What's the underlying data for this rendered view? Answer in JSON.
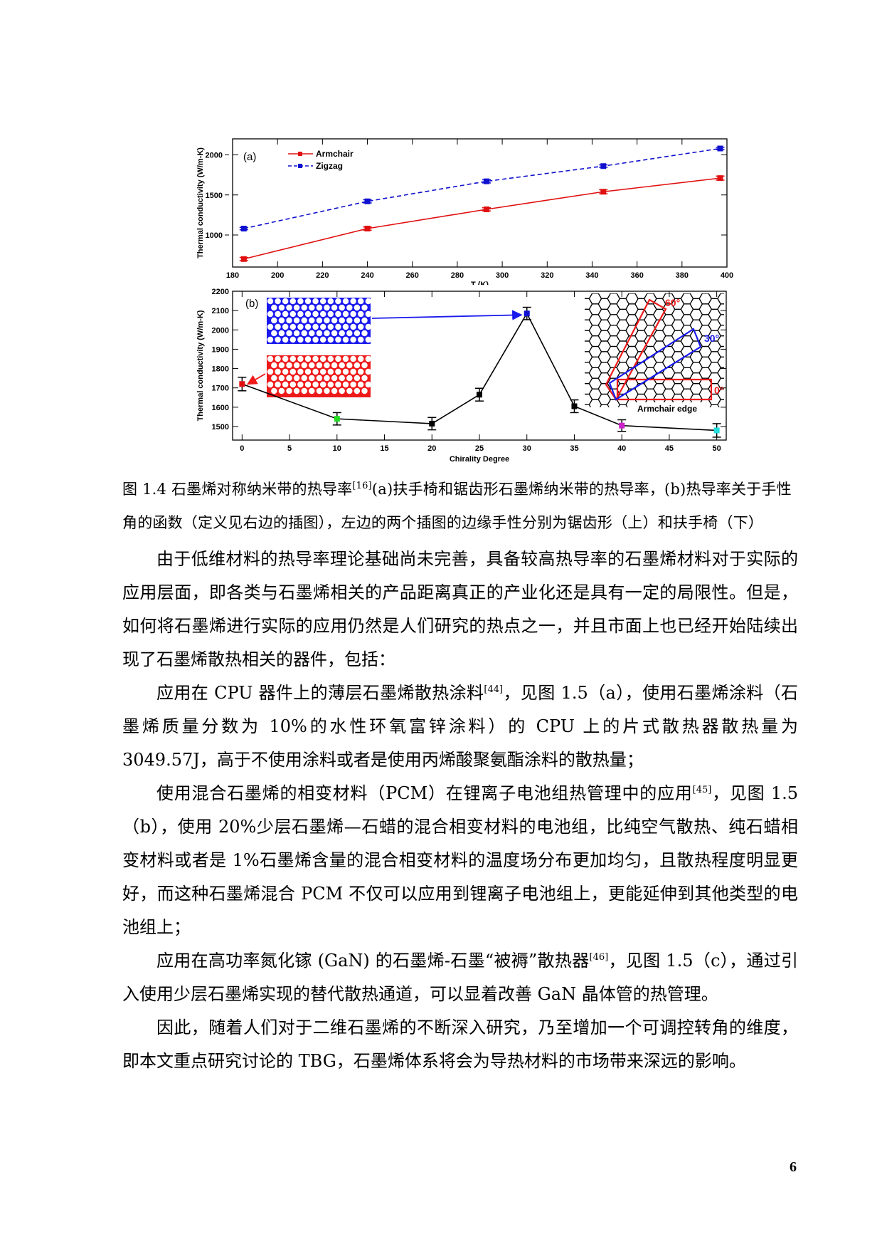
{
  "figure": {
    "panel_a": {
      "label": "(a)",
      "ylabel": "Thermal conductivity (W/m-K)",
      "xlabel": "T (K)",
      "legend": [
        "Armchair",
        "Zigzag"
      ]
    },
    "panel_b": {
      "label": "(b)",
      "ylabel": "Thermal conductivity (W/m-K)",
      "xlabel": "Chirality Degree",
      "inset_labels": [
        "60°",
        "30°",
        "0°"
      ],
      "inset_caption": "Armchair edge"
    }
  },
  "chart_data": [
    {
      "type": "line",
      "title": "(a)",
      "xlabel": "T (K)",
      "ylabel": "Thermal conductivity (W/m-K)",
      "x": [
        185,
        240,
        293,
        345,
        397
      ],
      "xlim": [
        180,
        400
      ],
      "ylim": [
        600,
        2200
      ],
      "xticks": [
        180,
        200,
        220,
        240,
        260,
        280,
        300,
        320,
        340,
        360,
        380,
        400
      ],
      "yticks": [
        1000,
        1500,
        2000
      ],
      "series": [
        {
          "name": "Armchair",
          "color": "#e01010",
          "style": "solid",
          "values": [
            700,
            1080,
            1320,
            1540,
            1710
          ],
          "error": [
            20,
            20,
            20,
            25,
            25
          ]
        },
        {
          "name": "Zigzag",
          "color": "#1010d0",
          "style": "dashed",
          "values": [
            1080,
            1420,
            1670,
            1860,
            2080
          ],
          "error": [
            15,
            20,
            20,
            15,
            15
          ]
        }
      ],
      "legend_position": "upper left",
      "grid": false
    },
    {
      "type": "line",
      "title": "(b)",
      "xlabel": "Chirality Degree",
      "ylabel": "Thermal conductivity (W/m-K)",
      "x": [
        0,
        10,
        20,
        25,
        30,
        35,
        40,
        50
      ],
      "xlim": [
        -1,
        51
      ],
      "ylim": [
        1430,
        2200
      ],
      "xticks": [
        0,
        5,
        10,
        15,
        20,
        25,
        30,
        35,
        40,
        45,
        50
      ],
      "yticks": [
        1500,
        1600,
        1700,
        1800,
        1900,
        2000,
        2100,
        2200
      ],
      "series": [
        {
          "name": "Thermal conductivity vs chirality",
          "color": "#000000",
          "values": [
            1720,
            1540,
            1515,
            1665,
            2085,
            1605,
            1505,
            1480
          ],
          "error": [
            35,
            32,
            32,
            33,
            32,
            33,
            30,
            35
          ],
          "marker_colors": [
            "#e01010",
            "#22dd22",
            "#000000",
            "#000000",
            "#1010d0",
            "#000000",
            "#cc22cc",
            "#22dddd"
          ]
        }
      ],
      "annotations": [
        "zigzag-edge inset (blue) → 30°",
        "armchair-edge inset (red) → 0°",
        "60°",
        "30°",
        "0°",
        "Armchair edge"
      ],
      "grid": false
    }
  ],
  "caption": {
    "line1_prefix": "图 1.4 石墨烯对称纳米带的热导率",
    "ref": "[16]",
    "line1_suffix": "(a)扶手椅和锯齿形石墨烯纳米带的热导率，(b)热导率关于手性",
    "line2": "角的函数（定义见右边的插图），左边的两个插图的边缘手性分别为锯齿形（上）和扶手椅（下）"
  },
  "paragraphs": [
    {
      "text": "由于低维材料的热导率理论基础尚未完善，具备较高热导率的石墨烯材料对于实际的应用层面，即各类与石墨烯相关的产品距离真正的产业化还是具有一定的局限性。但是，如何将石墨烯进行实际的应用仍然是人们研究的热点之一，并且市面上也已经开始陆续出现了石墨烯散热相关的器件，包括："
    },
    {
      "pre": "应用在 CPU 器件上的薄层石墨烯散热涂料",
      "ref": "[44]",
      "post": "，见图 1.5（a），使用石墨烯涂料（石墨烯质量分数为 10%的水性环氧富锌涂料）的 CPU 上的片式散热器散热量为 3049.57J，高于不使用涂料或者是使用丙烯酸聚氨酯涂料的散热量；"
    },
    {
      "pre": "使用混合石墨烯的相变材料（PCM）在锂离子电池组热管理中的应用",
      "ref": "[45]",
      "post": "，见图 1.5（b），使用 20%少层石墨烯—石蜡的混合相变材料的电池组，比纯空气散热、纯石蜡相变材料或者是 1%石墨烯含量的混合相变材料的温度场分布更加均匀，且散热程度明显更好，而这种石墨烯混合 PCM 不仅可以应用到锂离子电池组上，更能延伸到其他类型的电池组上；"
    },
    {
      "pre": "应用在高功率氮化镓 (GaN) 的石墨烯-石墨“被褥”散热器",
      "ref": "[46]",
      "post": "，见图 1.5（c），通过引入使用少层石墨烯实现的替代散热通道，可以显着改善 GaN 晶体管的热管理。"
    },
    {
      "text": "因此，随着人们对于二维石墨烯的不断深入研究，乃至增加一个可调控转角的维度，即本文重点研究讨论的 TBG，石墨烯体系将会为导热材料的市场带来深远的影响。"
    }
  ],
  "page_number": "6"
}
